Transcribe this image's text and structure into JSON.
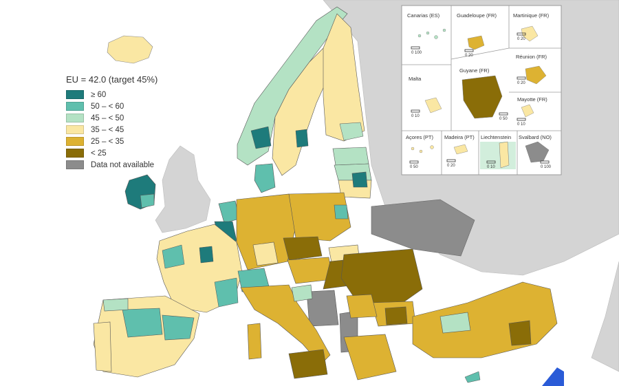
{
  "legend": {
    "title": "EU = 42.0 (target 45%)",
    "classes": [
      {
        "label": "≥ 60",
        "color": "#1e7b7b"
      },
      {
        "label": "50 – < 60",
        "color": "#5fbfad"
      },
      {
        "label": "45 – < 50",
        "color": "#b4e2c4"
      },
      {
        "label": "35 – < 45",
        "color": "#fae7a3"
      },
      {
        "label": "25 – < 35",
        "color": "#ddb232"
      },
      {
        "label": "< 25",
        "color": "#8a6d08"
      },
      {
        "label": "Data not available",
        "color": "#8c8c8c"
      }
    ]
  },
  "insets": {
    "canarias": "Canarias (ES)",
    "guadeloupe": "Guadeloupe (FR)",
    "martinique": "Martinique (FR)",
    "reunion": "Réunion (FR)",
    "malta": "Malta",
    "guyane": "Guyane (FR)",
    "mayotte": "Mayotte (FR)",
    "acores": "Açores (PT)",
    "madeira": "Madeira (PT)",
    "liechtenstein": "Liechtenstein",
    "svalbard": "Svalbard (NO)"
  },
  "scales": {
    "canarias": "0  100",
    "guadeloupe": "0  20",
    "martinique": "0  20",
    "reunion": "0  20",
    "malta": "0  10",
    "guyane": "0  50",
    "mayotte": "0  10",
    "acores": "0  50",
    "madeira": "0  20",
    "liechtenstein": "0  10",
    "svalbard": "0 100"
  },
  "colors": {
    "sea": "#ffffff",
    "non_eu": "#d4d4d4",
    "border": "#333333"
  }
}
